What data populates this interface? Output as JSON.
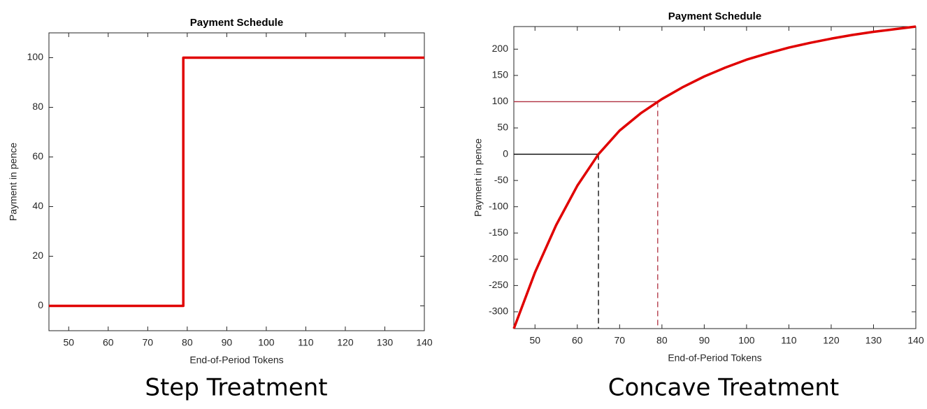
{
  "chart_data": [
    {
      "type": "line",
      "title": "Payment Schedule",
      "xlabel": "End-of-Period Tokens",
      "ylabel": "Payment in pence",
      "caption": "Step Treatment",
      "x": [
        45,
        79,
        79,
        140
      ],
      "series": [
        {
          "color": "#e00000",
          "values": [
            0,
            0,
            100,
            100
          ]
        }
      ],
      "xlim": [
        45,
        140
      ],
      "xticks": [
        50,
        60,
        70,
        80,
        90,
        100,
        110,
        120,
        130,
        140
      ],
      "ylim": [
        -10,
        110
      ],
      "yticks": [
        0,
        20,
        40,
        60,
        80,
        100
      ],
      "grid": false
    },
    {
      "type": "line",
      "title": "Payment Schedule",
      "xlabel": "End-of-Period Tokens",
      "ylabel": "Payment in pence",
      "caption": "Concave Treatment",
      "x": [
        45,
        50,
        55,
        60,
        65,
        70,
        75,
        80,
        85,
        90,
        95,
        100,
        105,
        110,
        115,
        120,
        125,
        130,
        135,
        140
      ],
      "series": [
        {
          "color": "#e00000",
          "values": [
            -332,
            -225,
            -135,
            -60,
            0,
            45,
            78,
            105,
            128,
            148,
            165,
            180,
            192,
            203,
            212,
            220,
            227,
            233,
            238,
            243
          ]
        }
      ],
      "reference_lines": [
        {
          "x": 65,
          "y": 0,
          "color": "#000000"
        },
        {
          "x": 79,
          "y": 100,
          "color": "#b03040"
        }
      ],
      "xlim": [
        45,
        140
      ],
      "xticks": [
        50,
        60,
        70,
        80,
        90,
        100,
        110,
        120,
        130,
        140
      ],
      "ylim": [
        -332,
        243
      ],
      "yticks": [
        -300,
        -250,
        -200,
        -150,
        -100,
        -50,
        0,
        50,
        100,
        150,
        200
      ],
      "grid": false
    }
  ]
}
